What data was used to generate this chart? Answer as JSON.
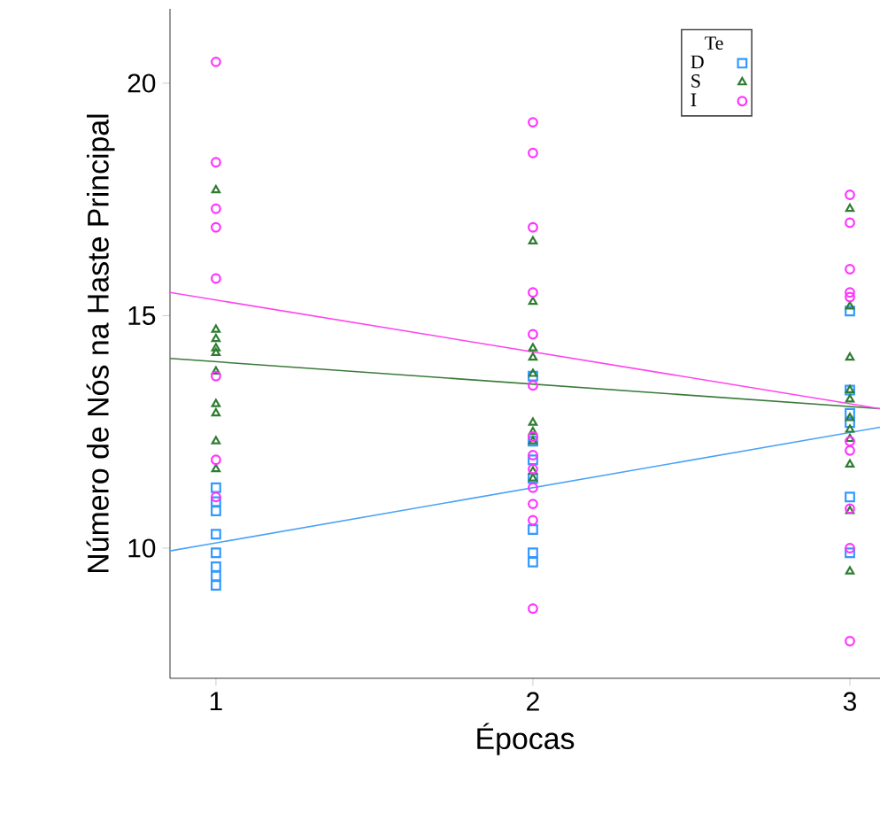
{
  "chart_data": {
    "type": "scatter",
    "xlabel": "Épocas",
    "ylabel": "Número de Nós na Haste Principal",
    "legend_title": "Te",
    "xlim": [
      0.855,
      3.095
    ],
    "ylim": [
      7.2,
      21.6
    ],
    "xticks": [
      1,
      2,
      3
    ],
    "yticks": [
      10,
      15,
      20
    ],
    "grid": false,
    "legend": "top right",
    "series": [
      {
        "name": "D",
        "color": "#3399ff",
        "marker": "square",
        "x": [
          1,
          1,
          1,
          1,
          1,
          1,
          1,
          1,
          2,
          2,
          2,
          2,
          2,
          2,
          2,
          3,
          3,
          3,
          3,
          3,
          3
        ],
        "values": [
          11.3,
          11.0,
          10.8,
          10.3,
          9.9,
          9.6,
          9.4,
          9.2,
          13.7,
          12.3,
          11.9,
          11.5,
          10.4,
          9.9,
          9.7,
          15.1,
          13.4,
          12.9,
          12.7,
          11.1,
          9.9
        ]
      },
      {
        "name": "S",
        "color": "#2e7d32",
        "marker": "triangle",
        "x": [
          1,
          1,
          1,
          1,
          1,
          1,
          1,
          1,
          1,
          1,
          2,
          2,
          2,
          2,
          2,
          2,
          2,
          2,
          2,
          2,
          3,
          3,
          3,
          3,
          3,
          3,
          3,
          3,
          3,
          3,
          3
        ],
        "values": [
          17.7,
          14.7,
          14.5,
          14.3,
          14.2,
          13.8,
          13.1,
          12.9,
          12.3,
          11.7,
          16.6,
          15.3,
          14.3,
          14.1,
          13.75,
          12.7,
          12.5,
          12.3,
          11.65,
          11.5,
          17.3,
          15.2,
          14.1,
          13.4,
          13.2,
          12.8,
          12.55,
          12.35,
          11.8,
          10.8,
          9.5
        ]
      },
      {
        "name": "I",
        "color": "#ff33ff",
        "marker": "circle",
        "x": [
          1,
          1,
          1,
          1,
          1,
          1,
          1,
          1,
          2,
          2,
          2,
          2,
          2,
          2,
          2,
          2,
          2,
          2,
          2,
          2,
          2,
          3,
          3,
          3,
          3,
          3,
          3,
          3,
          3,
          3,
          3
        ],
        "values": [
          20.46,
          18.3,
          17.3,
          16.9,
          15.8,
          13.7,
          11.9,
          11.1,
          19.16,
          18.5,
          16.9,
          15.5,
          14.6,
          13.5,
          12.4,
          12.0,
          11.7,
          11.3,
          10.95,
          10.6,
          8.7,
          17.6,
          17.0,
          16.0,
          15.5,
          15.4,
          12.3,
          12.1,
          10.85,
          10.0,
          8.0
        ]
      },
      {
        "type": "line",
        "color": "#4aa3f5",
        "marker": "none",
        "x": [
          0.855,
          3.095
        ],
        "values": [
          9.94,
          12.6
        ]
      },
      {
        "type": "line",
        "color": "#3a7a3a",
        "marker": "none",
        "x": [
          0.855,
          3.095
        ],
        "values": [
          14.08,
          13.0
        ]
      },
      {
        "type": "line",
        "color": "#ff44ee",
        "marker": "none",
        "x": [
          0.855,
          3.095
        ],
        "values": [
          15.5,
          13.0
        ]
      }
    ]
  }
}
